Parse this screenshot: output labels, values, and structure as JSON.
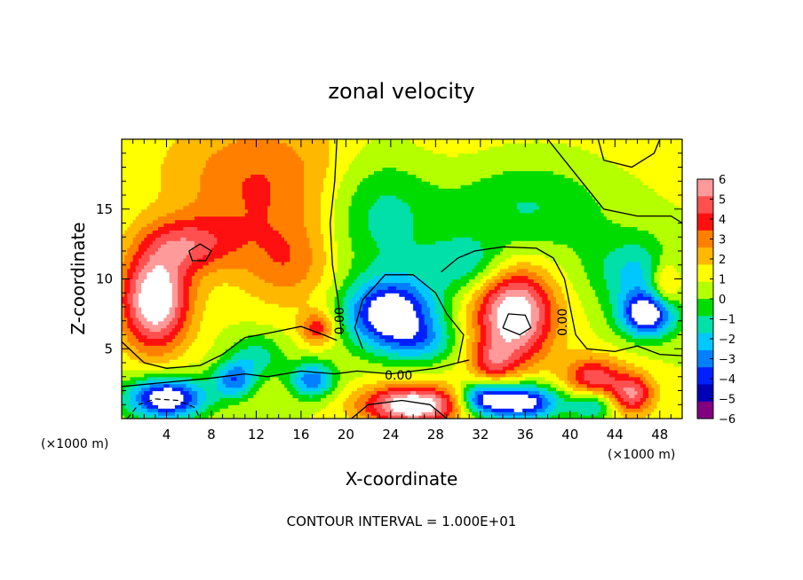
{
  "chart_data": {
    "type": "heatmap",
    "title": "zonal velocity",
    "xlabel": "X-coordinate",
    "ylabel": "Z-coordinate",
    "x_unit_label": "(×1000 m)",
    "y_unit_label": "(×1000 m)",
    "xlim": [
      0,
      50
    ],
    "ylim": [
      0,
      20
    ],
    "x_ticks": [
      4,
      8,
      12,
      16,
      20,
      24,
      28,
      32,
      36,
      40,
      44,
      48
    ],
    "x_tick_labels": [
      "4",
      "8",
      "12",
      "16",
      "20",
      "24",
      "28",
      "32",
      "36",
      "40",
      "44",
      "48"
    ],
    "y_ticks": [
      5,
      10,
      15
    ],
    "y_tick_labels": [
      "5",
      "10",
      "15"
    ],
    "colorbar": {
      "levels": [
        6,
        5,
        4,
        3,
        2,
        1,
        0,
        -1,
        -2,
        -3,
        -4,
        -5,
        -6
      ],
      "labels": [
        "6",
        "5",
        "4",
        "3",
        "2",
        "1",
        "0",
        "−1",
        "−2",
        "−3",
        "−4",
        "−5",
        "−6"
      ],
      "colors": [
        "#ff9a9a",
        "#ff5050",
        "#ff1010",
        "#ff8000",
        "#ffb800",
        "#ffff00",
        "#b4ff00",
        "#00dc00",
        "#00e0a8",
        "#00c8ff",
        "#0080ff",
        "#0020ff",
        "#0000b4",
        "#800080"
      ]
    },
    "contour_labels": [
      {
        "x": 24.7,
        "z": 3.1,
        "text": "0.00"
      },
      {
        "x": 19.4,
        "z": 7.0,
        "text": "0.00"
      },
      {
        "x": 39.3,
        "z": 6.9,
        "text": "0.00"
      }
    ],
    "blobs": [
      {
        "x": 25,
        "z": 19,
        "rx": 28,
        "rz": 4,
        "v": 0.9
      },
      {
        "x": 12,
        "z": 16,
        "rx": 7,
        "rz": 5,
        "v": 2.6
      },
      {
        "x": 6,
        "z": 12.5,
        "rx": 4,
        "rz": 2,
        "v": 3.6
      },
      {
        "x": 15,
        "z": 11,
        "rx": 4,
        "rz": 3,
        "v": 2.2
      },
      {
        "x": 3,
        "z": 8.5,
        "rx": 3,
        "rz": 3.5,
        "v": 7.5
      },
      {
        "x": 17.5,
        "z": 6.5,
        "rx": 1.6,
        "rz": 1.2,
        "v": 3.8
      },
      {
        "x": 23,
        "z": 15,
        "rx": 5,
        "rz": 5,
        "v": -2.6
      },
      {
        "x": 36,
        "z": 15.5,
        "rx": 8,
        "rz": 4,
        "v": -2.4
      },
      {
        "x": 31,
        "z": 11,
        "rx": 4,
        "rz": 2,
        "v": -2.6
      },
      {
        "x": 46,
        "z": 10.5,
        "rx": 4,
        "rz": 2.5,
        "v": -3.2
      },
      {
        "x": 24,
        "z": 7.5,
        "rx": 4,
        "rz": 2.5,
        "v": -7.5
      },
      {
        "x": 27,
        "z": 5.5,
        "rx": 3,
        "rz": 1.5,
        "v": -2.5
      },
      {
        "x": 35,
        "z": 7.5,
        "rx": 3.5,
        "rz": 3.5,
        "v": 7.5
      },
      {
        "x": 33,
        "z": 4,
        "rx": 2,
        "rz": 1.5,
        "v": 3
      },
      {
        "x": 47,
        "z": 7.5,
        "rx": 2.5,
        "rz": 1.6,
        "v": -7.5
      },
      {
        "x": 4,
        "z": 1.5,
        "rx": 3.5,
        "rz": 1.5,
        "v": -7.5
      },
      {
        "x": 10,
        "z": 2.8,
        "rx": 1.8,
        "rz": 1.3,
        "v": -4.5
      },
      {
        "x": 17,
        "z": 2.8,
        "rx": 2,
        "rz": 1.3,
        "v": -4.8
      },
      {
        "x": 12,
        "z": 4.5,
        "rx": 2.5,
        "rz": 1.6,
        "v": -2.5
      },
      {
        "x": 26,
        "z": 1,
        "rx": 4.5,
        "rz": 1.4,
        "v": 7.5
      },
      {
        "x": 35.5,
        "z": 1.2,
        "rx": 3.5,
        "rz": 1.3,
        "v": -7.5
      },
      {
        "x": 32,
        "z": 1.5,
        "rx": 2,
        "rz": 1.2,
        "v": -4.5
      },
      {
        "x": 42,
        "z": 3,
        "rx": 2.5,
        "rz": 1.5,
        "v": 4.5
      },
      {
        "x": 45.5,
        "z": 1.8,
        "rx": 2,
        "rz": 1.5,
        "v": 5
      },
      {
        "x": 48.5,
        "z": 9.5,
        "rx": 1.5,
        "rz": 2,
        "v": 3.5
      },
      {
        "x": 42,
        "z": 1,
        "rx": 2,
        "rz": 1,
        "v": -3.5
      }
    ],
    "contours": [
      [
        [
          19.2,
          20
        ],
        [
          19.0,
          17
        ],
        [
          18.6,
          14
        ],
        [
          18.8,
          11
        ],
        [
          19.3,
          8.5
        ],
        [
          19.6,
          6
        ]
      ],
      [
        [
          0,
          2.3
        ],
        [
          4,
          2.6
        ],
        [
          8,
          2.9
        ],
        [
          11,
          3.2
        ],
        [
          13,
          3.0
        ],
        [
          16,
          3.4
        ],
        [
          19,
          3.2
        ],
        [
          21,
          3.4
        ],
        [
          24,
          3.2
        ],
        [
          28,
          3.6
        ],
        [
          30,
          4.0
        ],
        [
          31,
          4.2
        ]
      ],
      [
        [
          0,
          5.5
        ],
        [
          2,
          4.0
        ],
        [
          4,
          3.6
        ],
        [
          7,
          3.8
        ],
        [
          9,
          4.6
        ],
        [
          11,
          5.8
        ],
        [
          13,
          6.1
        ],
        [
          16,
          6.6
        ],
        [
          18,
          6.0
        ],
        [
          19.2,
          5.6
        ]
      ],
      [
        [
          30,
          4
        ],
        [
          30.5,
          6
        ],
        [
          29,
          7.5
        ],
        [
          28,
          9
        ],
        [
          26,
          10.3
        ],
        [
          23.5,
          10.3
        ],
        [
          21.5,
          8.5
        ],
        [
          20.8,
          6.5
        ],
        [
          21.5,
          5
        ]
      ],
      [
        [
          28.5,
          10.5
        ],
        [
          30,
          11.5
        ],
        [
          31.5,
          12
        ],
        [
          34,
          12.3
        ],
        [
          37,
          12.2
        ],
        [
          38.5,
          11.5
        ],
        [
          39.5,
          10
        ],
        [
          40,
          8
        ],
        [
          40.5,
          6
        ],
        [
          41.5,
          5
        ],
        [
          44,
          4.8
        ],
        [
          46,
          5.2
        ],
        [
          48,
          4.6
        ],
        [
          50,
          4.5
        ]
      ],
      [
        [
          38,
          20
        ],
        [
          41,
          17
        ],
        [
          43,
          15
        ],
        [
          46,
          14.5
        ],
        [
          49,
          14.5
        ],
        [
          50,
          14
        ]
      ],
      [
        [
          42.5,
          20
        ],
        [
          43,
          18.5
        ],
        [
          45.5,
          18
        ],
        [
          47.5,
          19
        ],
        [
          48,
          20
        ]
      ],
      [
        [
          20.5,
          0
        ],
        [
          22,
          1
        ],
        [
          25,
          1.3
        ],
        [
          27.5,
          1
        ],
        [
          29,
          0
        ]
      ],
      [
        [
          34,
          6.5
        ],
        [
          34.5,
          7.5
        ],
        [
          36,
          7.4
        ],
        [
          36.5,
          6.5
        ],
        [
          35.5,
          6
        ],
        [
          34,
          6.5
        ]
      ],
      [
        [
          6,
          12
        ],
        [
          7,
          12.5
        ],
        [
          8,
          12
        ],
        [
          7.5,
          11.3
        ],
        [
          6.3,
          11.3
        ],
        [
          6,
          12
        ]
      ]
    ],
    "dashed_contours": [
      [
        [
          0.5,
          0
        ],
        [
          1.5,
          1.0
        ],
        [
          3,
          1.4
        ],
        [
          5,
          1.3
        ],
        [
          6.5,
          0.8
        ],
        [
          7,
          0
        ]
      ]
    ]
  },
  "footer": {
    "contour_interval": "CONTOUR INTERVAL = 1.000E+01"
  }
}
